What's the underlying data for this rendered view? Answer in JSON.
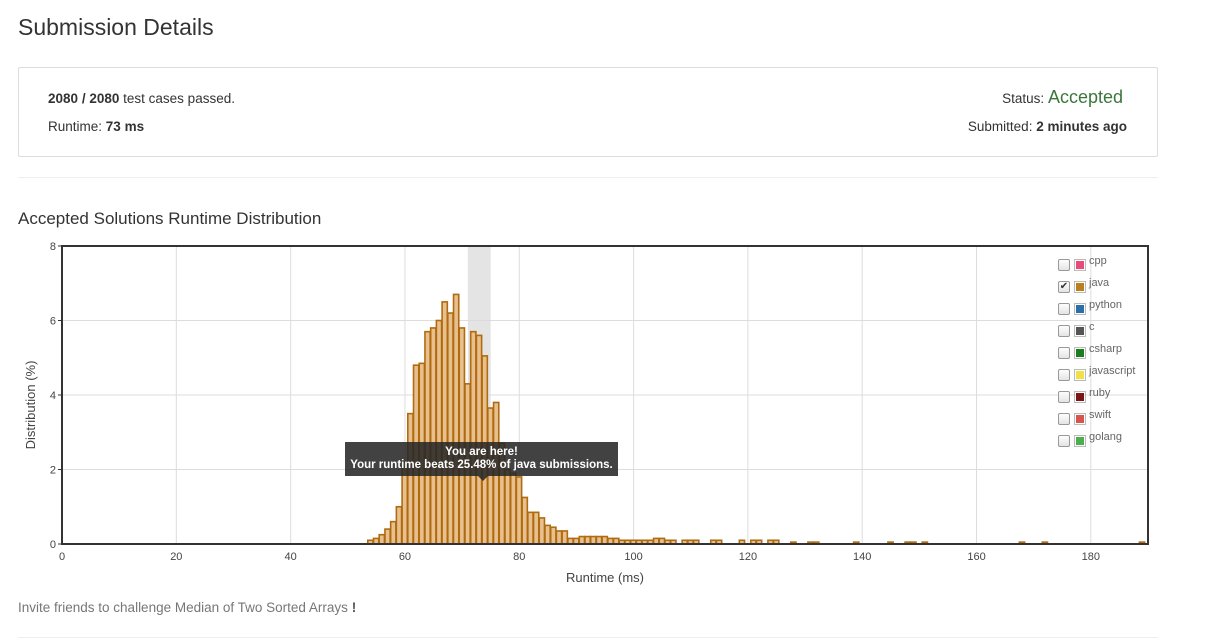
{
  "page": {
    "title": "Submission Details"
  },
  "summary": {
    "passed": "2080",
    "sep": "/",
    "total": "2080",
    "passed_suffix": "test cases passed.",
    "runtime_label": "Runtime:",
    "runtime_value": "73 ms",
    "status_label": "Status:",
    "status_value": "Accepted",
    "submitted_label": "Submitted:",
    "submitted_value": "2 minutes ago"
  },
  "section": {
    "title": "Accepted Solutions Runtime Distribution"
  },
  "legend": [
    {
      "label": "cpp",
      "color": "#e84b7c",
      "checked": false
    },
    {
      "label": "java",
      "color": "#b8801f",
      "checked": true
    },
    {
      "label": "python",
      "color": "#2b6fa8",
      "checked": false
    },
    {
      "label": "c",
      "color": "#555555",
      "checked": false
    },
    {
      "label": "csharp",
      "color": "#1e7d1e",
      "checked": false
    },
    {
      "label": "javascript",
      "color": "#f2e048",
      "checked": false
    },
    {
      "label": "ruby",
      "color": "#7a1616",
      "checked": false
    },
    {
      "label": "swift",
      "color": "#d9534f",
      "checked": false
    },
    {
      "label": "golang",
      "color": "#4cae4c",
      "checked": false
    }
  ],
  "tooltip": {
    "line1": "You are here!",
    "line2": "Your runtime beats 25.48% of java submissions."
  },
  "chart_data": {
    "type": "bar",
    "xlabel": "Runtime (ms)",
    "ylabel": "Distribution (%)",
    "xlim": [
      0,
      190
    ],
    "ylim": [
      0,
      8
    ],
    "xticks": [
      0,
      20,
      40,
      60,
      80,
      100,
      120,
      140,
      160,
      180
    ],
    "yticks": [
      0,
      2,
      4,
      6,
      8
    ],
    "grid": true,
    "highlight_x": [
      71,
      75
    ],
    "bar_width": 1,
    "bar_fill": "#e8c08f",
    "bar_stroke": "#b06b0f",
    "x": [
      54,
      55,
      56,
      57,
      58,
      59,
      60,
      61,
      62,
      63,
      64,
      65,
      66,
      67,
      68,
      69,
      70,
      71,
      72,
      73,
      74,
      75,
      76,
      77,
      78,
      79,
      80,
      81,
      82,
      83,
      84,
      85,
      86,
      87,
      88,
      89,
      90,
      91,
      92,
      93,
      94,
      95,
      96,
      97,
      98,
      99,
      100,
      101,
      102,
      103,
      104,
      105,
      106,
      107,
      109,
      110,
      111,
      114,
      115,
      119,
      121,
      122,
      124,
      125,
      128,
      131,
      132,
      139,
      145,
      148,
      149,
      151,
      168,
      172,
      189
    ],
    "values": [
      0.1,
      0.15,
      0.25,
      0.4,
      0.6,
      1.0,
      2.2,
      3.5,
      4.8,
      4.85,
      5.7,
      5.8,
      6.0,
      6.5,
      6.2,
      6.7,
      5.8,
      4.3,
      5.7,
      5.6,
      5.05,
      3.65,
      3.8,
      2.7,
      2.0,
      1.9,
      1.8,
      1.25,
      0.85,
      0.85,
      0.7,
      0.5,
      0.45,
      0.35,
      0.35,
      0.15,
      0.15,
      0.2,
      0.2,
      0.2,
      0.2,
      0.2,
      0.15,
      0.15,
      0.1,
      0.1,
      0.1,
      0.1,
      0.1,
      0.1,
      0.15,
      0.15,
      0.1,
      0.1,
      0.1,
      0.1,
      0.1,
      0.1,
      0.1,
      0.1,
      0.1,
      0.1,
      0.1,
      0.1,
      0.05,
      0.05,
      0.05,
      0.05,
      0.05,
      0.05,
      0.05,
      0.05,
      0.05,
      0.05,
      0.05
    ]
  },
  "footer": {
    "invite_text": "Invite friends to challenge Median of Two Sorted Arrays",
    "invite_bang": "!"
  }
}
